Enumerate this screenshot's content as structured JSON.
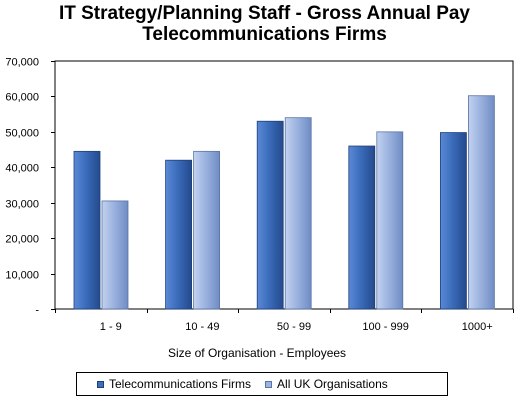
{
  "colors": {
    "series_1": "#3d6fbd",
    "series_2": "#9db4e0",
    "grid": "#000000",
    "background": "#ffffff"
  },
  "chart_data": {
    "type": "bar",
    "title_line_1": "IT Strategy/Planning Staff - Gross Annual Pay",
    "title_line_2": "Telecommunications Firms",
    "xlabel": "Size of Organisation - Employees",
    "ylabel": "",
    "categories": [
      "1 - 9",
      "10 - 49",
      "50 - 99",
      "100 - 999",
      "1000+"
    ],
    "series": [
      {
        "name": "Telecommunications Firms",
        "values": [
          44500,
          42000,
          53000,
          46000,
          49800
        ]
      },
      {
        "name": "All UK Organisations",
        "values": [
          30500,
          44500,
          54000,
          50000,
          60200
        ]
      }
    ],
    "ylim": [
      0,
      70000
    ],
    "yticks": [
      0,
      10000,
      20000,
      30000,
      40000,
      50000,
      60000,
      70000
    ],
    "ytick_labels": [
      "-",
      "10,000",
      "20,000",
      "30,000",
      "40,000",
      "50,000",
      "60,000",
      "70,000"
    ],
    "grid": false,
    "legend_position": "bottom"
  }
}
